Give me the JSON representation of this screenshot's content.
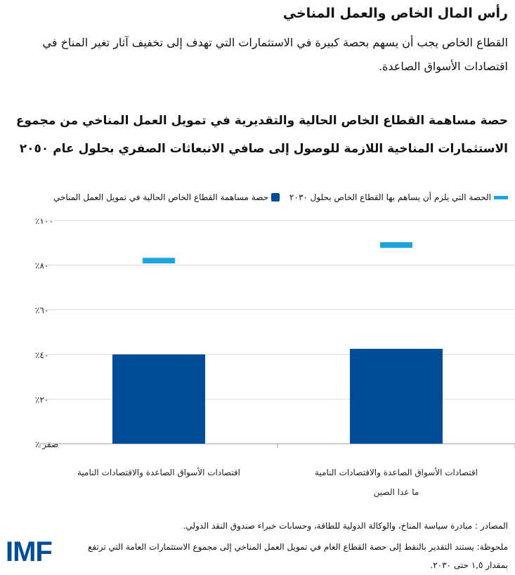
{
  "header": {
    "title": "رأس المال الخاص والعمل المناخي",
    "subtitle": "القطاع الخاص يجب أن يسهم بحصة كبيرة في الاستثمارات التي تهدف إلى تخفيف آثار تغير المناخ في اقتصادات الأسواق الصاعدة."
  },
  "chart_data": {
    "type": "bar",
    "title": "حصة مساهمة القطاع الخاص الحالية والتقديرية في تمويل العمل المناخي من مجموع الاستثمارات المناخية اللازمة للوصول إلى صافي الانبعاثات الصفري بحلول عام ٢٠٥٠",
    "categories": [
      "اقتصادات الأسواق الصاعدة والاقتصادات النامية",
      "اقتصادات الأسواق الصاعدة والاقتصادات النامية ما عدا الصين"
    ],
    "category_lines": [
      [
        "اقتصادات الأسواق الصاعدة والاقتصادات النامية"
      ],
      [
        "اقتصادات الأسواق الصاعدة والاقتصادات النامية",
        "ما عدا الصين"
      ]
    ],
    "series": [
      {
        "name": "حصة مساهمة القطاع الخاص الحالية في تمويل العمل المناخي",
        "type": "bar",
        "color": "#004c97",
        "values": [
          40,
          42.5
        ]
      },
      {
        "name": "الحصة التي يلزم أن يساهم بها القطاع الخاص بحلول ٢٠٣٠",
        "type": "marker",
        "color": "#1fa2e0",
        "values": [
          82,
          89
        ]
      }
    ],
    "ylim": [
      0,
      100
    ],
    "yticks": [
      0,
      20,
      40,
      60,
      80,
      100
    ],
    "ytick_labels": [
      "صفر ٪",
      "٢٠٪",
      "٤٠٪",
      "٦٠٪",
      "٨٠٪",
      "١٠٠٪"
    ],
    "grid": true,
    "legend": "top-right"
  },
  "footer": {
    "sources": "المصادر : مبادرة سياسة المناخ، والوكالة الدولية للطاقة، وحسابات خبراء صندوق النقد الدولي.",
    "note": "ملحوظة: يستند التقدير بالنقط إلى حصة القطاع العام في تمويل العمل المناخي إلى مجموع الاستثمارات العامة التي ترتفع بمقدار ١,٥ حتى ٢٠٣٠.",
    "logo": "IMF"
  }
}
